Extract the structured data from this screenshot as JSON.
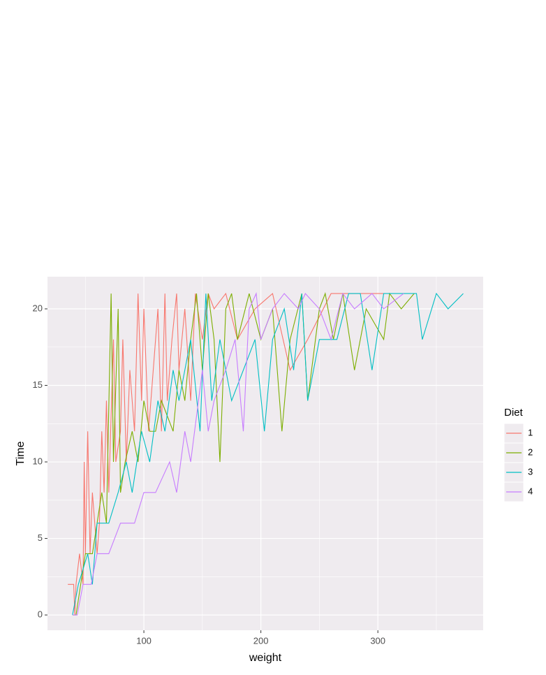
{
  "chart_data": {
    "type": "line",
    "x_label": "weight",
    "y_label": "Time",
    "legend_title": "Diet",
    "legend_position": "right",
    "grid": true,
    "xlim": [
      17.6,
      390
    ],
    "ylim": [
      -1.0,
      22.1
    ],
    "xticks": [
      100,
      200,
      300
    ],
    "yticks": [
      0,
      5,
      10,
      15,
      20
    ],
    "series": [
      {
        "name": "1",
        "color": "#F8766D",
        "x": [
          35,
          40,
          41,
          42,
          45,
          48,
          49,
          50,
          52,
          54,
          56,
          58,
          60,
          62,
          64,
          66,
          68,
          70,
          74,
          76,
          80,
          82,
          85,
          88,
          92,
          95,
          98,
          100,
          104,
          108,
          112,
          115,
          118,
          120,
          124,
          128,
          130,
          135,
          140,
          144,
          150,
          155,
          160,
          170,
          180,
          195,
          210,
          225,
          240,
          260,
          280,
          305
        ],
        "values": [
          2,
          2,
          0,
          2,
          4,
          2,
          10,
          4,
          12,
          4,
          8,
          6,
          4,
          6,
          12,
          8,
          14,
          8,
          18,
          10,
          12,
          18,
          10,
          16,
          12,
          21,
          14,
          20,
          12,
          16,
          20,
          12,
          21,
          14,
          18,
          21,
          16,
          20,
          14,
          21,
          18,
          21,
          20,
          21,
          18,
          20,
          21,
          16,
          18,
          21,
          21,
          21
        ]
      },
      {
        "name": "2",
        "color": "#7CAE00",
        "x": [
          39,
          42,
          46,
          50,
          56,
          60,
          64,
          68,
          72,
          74,
          78,
          80,
          84,
          90,
          95,
          100,
          105,
          110,
          115,
          125,
          130,
          135,
          140,
          145,
          150,
          155,
          160,
          165,
          170,
          175,
          180,
          190,
          200,
          210,
          218,
          225,
          235,
          240,
          250,
          255,
          262,
          270,
          280,
          290,
          305,
          310,
          320,
          331
        ],
        "values": [
          0,
          0,
          2,
          4,
          4,
          6,
          8,
          6,
          21,
          10,
          20,
          8,
          10,
          12,
          10,
          14,
          12,
          12,
          14,
          12,
          16,
          14,
          18,
          21,
          16,
          21,
          18,
          10,
          20,
          21,
          18,
          21,
          18,
          20,
          12,
          18,
          21,
          14,
          20,
          21,
          18,
          21,
          16,
          20,
          18,
          21,
          20,
          21
        ]
      },
      {
        "name": "3",
        "color": "#00BFC4",
        "x": [
          39,
          44,
          52,
          56,
          60,
          70,
          78,
          85,
          90,
          98,
          105,
          112,
          118,
          125,
          130,
          140,
          148,
          153,
          158,
          165,
          175,
          185,
          195,
          203,
          210,
          220,
          228,
          235,
          240,
          250,
          265,
          275,
          285,
          295,
          305,
          320,
          333,
          338,
          350,
          360,
          373
        ],
        "values": [
          0,
          2,
          4,
          2,
          6,
          6,
          8,
          10,
          8,
          12,
          10,
          14,
          12,
          16,
          14,
          18,
          12,
          21,
          14,
          18,
          14,
          16,
          18,
          12,
          18,
          20,
          16,
          21,
          14,
          18,
          18,
          21,
          21,
          16,
          21,
          21,
          21,
          18,
          21,
          20,
          21
        ]
      },
      {
        "name": "4",
        "color": "#C77CFF",
        "x": [
          39,
          43,
          48,
          55,
          60,
          70,
          80,
          92,
          100,
          110,
          122,
          128,
          135,
          140,
          150,
          155,
          160,
          170,
          178,
          185,
          190,
          196,
          200,
          210,
          220,
          232,
          238,
          250,
          260,
          270,
          280,
          295,
          305,
          322
        ],
        "values": [
          0,
          0,
          2,
          2,
          4,
          4,
          6,
          6,
          8,
          8,
          10,
          8,
          12,
          10,
          16,
          12,
          14,
          16,
          18,
          12,
          20,
          21,
          18,
          20,
          21,
          20,
          21,
          20,
          18,
          21,
          20,
          21,
          20,
          21
        ]
      }
    ]
  }
}
